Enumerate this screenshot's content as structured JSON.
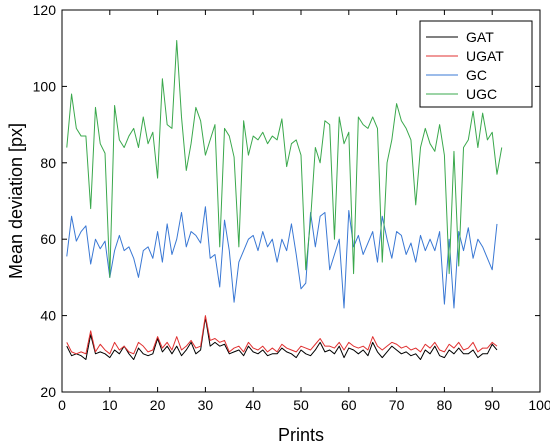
{
  "chart_data": {
    "type": "line",
    "xlabel": "Prints",
    "ylabel": "Mean deviation [px]",
    "xlim": [
      0,
      100
    ],
    "ylim": [
      20,
      120
    ],
    "xticks": [
      0,
      10,
      20,
      30,
      40,
      50,
      60,
      70,
      80,
      90,
      100
    ],
    "yticks": [
      20,
      40,
      60,
      80,
      100,
      120
    ],
    "grid": false,
    "legend_position": "top-right",
    "series": [
      {
        "name": "GAT",
        "color": "#000000",
        "values": [
          32,
          29.5,
          30,
          29.5,
          28.5,
          35,
          30,
          30.5,
          30,
          29,
          31,
          30,
          32,
          30,
          28.5,
          31.5,
          30,
          29.5,
          30,
          34,
          30.5,
          32,
          30,
          32,
          29.5,
          31,
          33,
          30,
          31,
          39.5,
          32,
          33,
          32,
          32.5,
          30,
          30.5,
          31,
          29.5,
          32,
          30.5,
          30,
          31,
          29.5,
          30,
          30,
          31.5,
          30.5,
          30,
          29,
          31,
          30,
          29.5,
          31,
          33,
          30.5,
          31,
          30,
          32,
          29,
          31.5,
          31,
          30,
          31,
          29.5,
          33,
          30.5,
          29,
          30.5,
          32,
          31,
          30,
          30.5,
          29.5,
          30,
          28.5,
          31,
          30,
          32,
          29.5,
          29,
          31,
          30,
          31.5,
          30,
          30,
          31,
          29,
          30,
          30,
          32.5,
          31
        ]
      },
      {
        "name": "UGAT",
        "color": "#e03030",
        "values": [
          33,
          30.5,
          30,
          30.5,
          30,
          36,
          30.5,
          32.5,
          31,
          30,
          33,
          31,
          32,
          30.5,
          30,
          33,
          32,
          30.5,
          31,
          34.5,
          31.5,
          33,
          31,
          34.5,
          31,
          32,
          33.5,
          31.5,
          32,
          40,
          33.5,
          34,
          33,
          33.5,
          30.5,
          31.5,
          32,
          30.5,
          33,
          31.5,
          31,
          32,
          30.5,
          31.5,
          30.5,
          32.5,
          31.5,
          31,
          30.5,
          32,
          31.5,
          31,
          32.5,
          34,
          32,
          32,
          31.5,
          33,
          31,
          33,
          32,
          31.5,
          32,
          31,
          34.5,
          32,
          31,
          32,
          33,
          32.5,
          31.5,
          32,
          31,
          31.5,
          30.5,
          32.5,
          31.5,
          33,
          31,
          30.5,
          32.5,
          31.5,
          33,
          31,
          31.5,
          33,
          30.5,
          31.5,
          31.5,
          33,
          32
        ]
      },
      {
        "name": "GC",
        "color": "#3a78d4",
        "values": [
          55.5,
          66,
          59.5,
          62,
          63.5,
          53.5,
          60,
          57.5,
          59.5,
          50,
          57,
          61,
          57,
          58,
          55,
          50,
          57,
          58,
          55,
          62,
          54,
          64,
          56,
          60,
          67,
          58,
          62,
          61,
          59,
          68.5,
          55,
          56,
          47.5,
          65,
          57,
          43.5,
          54,
          57,
          60,
          61,
          57,
          62,
          58,
          60,
          54,
          60,
          57,
          64,
          56,
          47,
          48.5,
          67,
          58,
          66,
          67,
          52,
          56,
          60,
          42,
          67.5,
          58,
          61,
          56,
          59,
          62,
          54,
          66,
          60,
          55,
          62,
          61,
          56,
          59,
          54,
          61,
          57,
          60,
          57,
          62,
          43,
          60,
          42,
          62,
          57,
          63,
          55,
          60,
          58,
          55,
          52,
          64
        ]
      },
      {
        "name": "UGC",
        "color": "#3aa84c",
        "values": [
          84,
          98,
          89,
          87,
          87,
          68,
          94.5,
          85,
          82.5,
          50,
          95,
          86,
          84,
          87,
          89,
          84,
          92,
          85,
          88,
          76,
          102,
          90,
          89,
          112,
          92,
          78,
          85,
          94.5,
          91,
          82,
          86,
          90,
          58,
          89,
          87,
          81.5,
          58,
          91,
          82,
          87,
          86,
          88,
          85,
          87,
          86,
          91.5,
          79,
          85,
          86,
          82,
          52,
          65,
          84,
          80,
          91,
          90,
          60,
          92,
          85,
          88,
          51,
          92,
          90,
          89,
          92,
          89,
          54,
          80,
          86,
          95.5,
          91,
          89,
          86,
          69,
          84,
          89,
          85,
          83,
          90,
          82,
          51,
          83,
          53,
          84,
          86,
          93.5,
          84,
          93,
          86,
          88,
          77,
          84
        ]
      }
    ]
  }
}
